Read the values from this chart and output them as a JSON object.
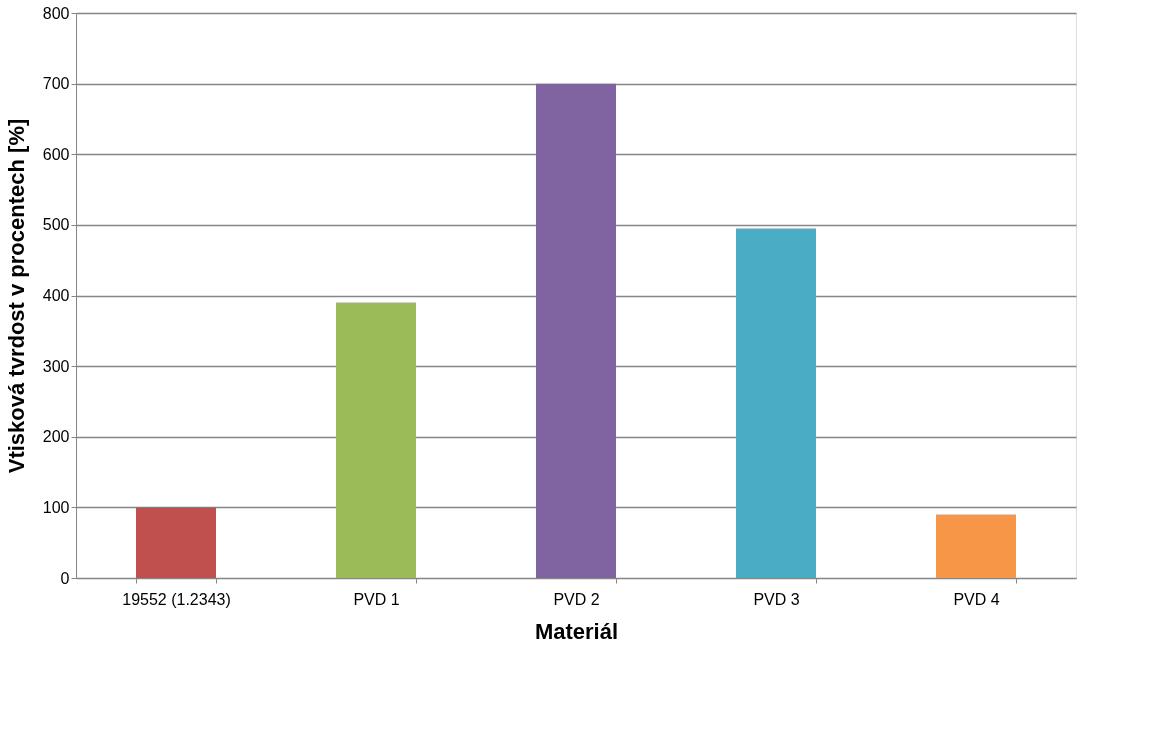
{
  "chart_data": {
    "type": "bar",
    "xlabel": "Materiál",
    "ylabel": "Vtisková tvrdost v procentech [%]",
    "categories": [
      "19552 (1.2343)",
      "PVD 1",
      "PVD 2",
      "PVD 3",
      "PVD 4"
    ],
    "values": [
      100,
      390,
      700,
      495,
      90
    ],
    "colors": [
      "#c0504d",
      "#9bbb59",
      "#8064a2",
      "#4bacc6",
      "#f79646"
    ],
    "ylim": [
      0,
      800
    ],
    "yticks": [
      0,
      100,
      200,
      300,
      400,
      500,
      600,
      700,
      800
    ],
    "grid": "y",
    "legend": false
  }
}
